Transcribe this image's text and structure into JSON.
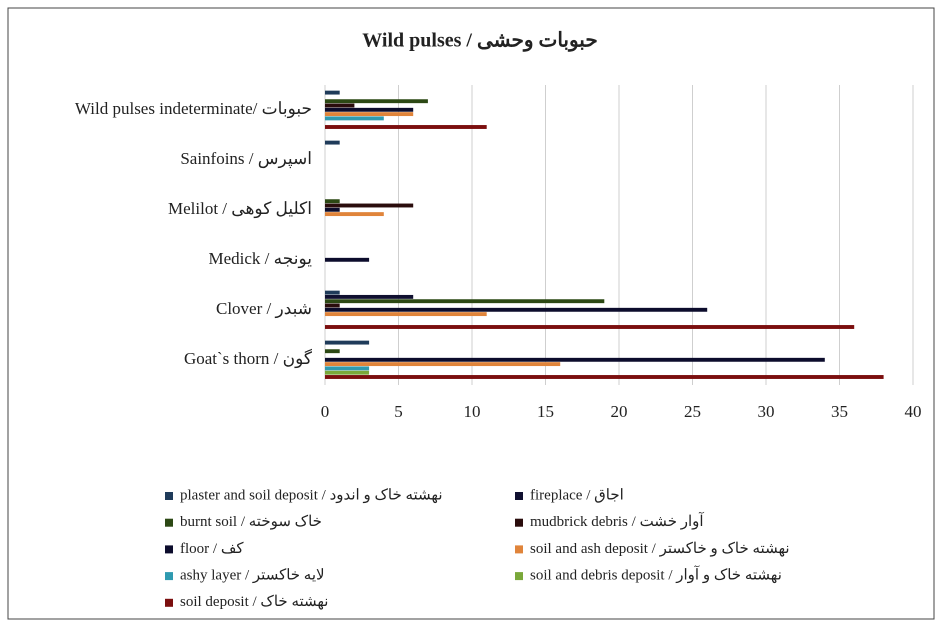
{
  "chart_data": {
    "type": "bar",
    "orientation": "horizontal",
    "title": "Wild pulses / حبوبات وحشی",
    "categories": [
      "Wild pulses indeterminate/ حبوبات",
      "Sainfoins / اسپرس",
      "Melilot / اکلیل کوهی",
      "Medick / یونجه",
      "Clover / شبدر",
      "Goat`s thorn / گون"
    ],
    "series": [
      {
        "name": "plaster and soil deposit / نهشته خاک و اندود",
        "color": "#1f3b5a",
        "values": [
          1,
          1,
          0,
          0,
          1,
          3
        ]
      },
      {
        "name": "fireplace / اجاق",
        "color": "#101030",
        "values": [
          0,
          0,
          0,
          0,
          6,
          0
        ]
      },
      {
        "name": "burnt soil / خاک سوخته",
        "color": "#2c4814",
        "values": [
          7,
          0,
          1,
          0,
          19,
          1
        ]
      },
      {
        "name": "mudbrick debris / آوار خشت",
        "color": "#2a0c0c",
        "values": [
          2,
          0,
          6,
          0,
          1,
          0
        ]
      },
      {
        "name": "floor / کف",
        "color": "#0c0c2c",
        "values": [
          6,
          0,
          1,
          3,
          26,
          34
        ]
      },
      {
        "name": "soil and ash deposit / نهشته خاک و خاکستر",
        "color": "#e0843a",
        "values": [
          6,
          0,
          4,
          0,
          11,
          16
        ]
      },
      {
        "name": "ashy layer / لایه خاکستر",
        "color": "#2f9ab0",
        "values": [
          4,
          0,
          0,
          0,
          0,
          3
        ]
      },
      {
        "name": "soil and debris deposit / نهشته خاک و آوار",
        "color": "#7aa83a",
        "values": [
          0,
          0,
          0,
          0,
          0,
          3
        ]
      },
      {
        "name": "soil deposit / نهشته خاک",
        "color": "#7b0e0e",
        "values": [
          11,
          0,
          0,
          0,
          36,
          38
        ]
      }
    ],
    "xlim": [
      0,
      40
    ],
    "xticks": [
      0,
      5,
      10,
      15,
      20,
      25,
      30,
      35,
      40
    ],
    "grid": true
  }
}
